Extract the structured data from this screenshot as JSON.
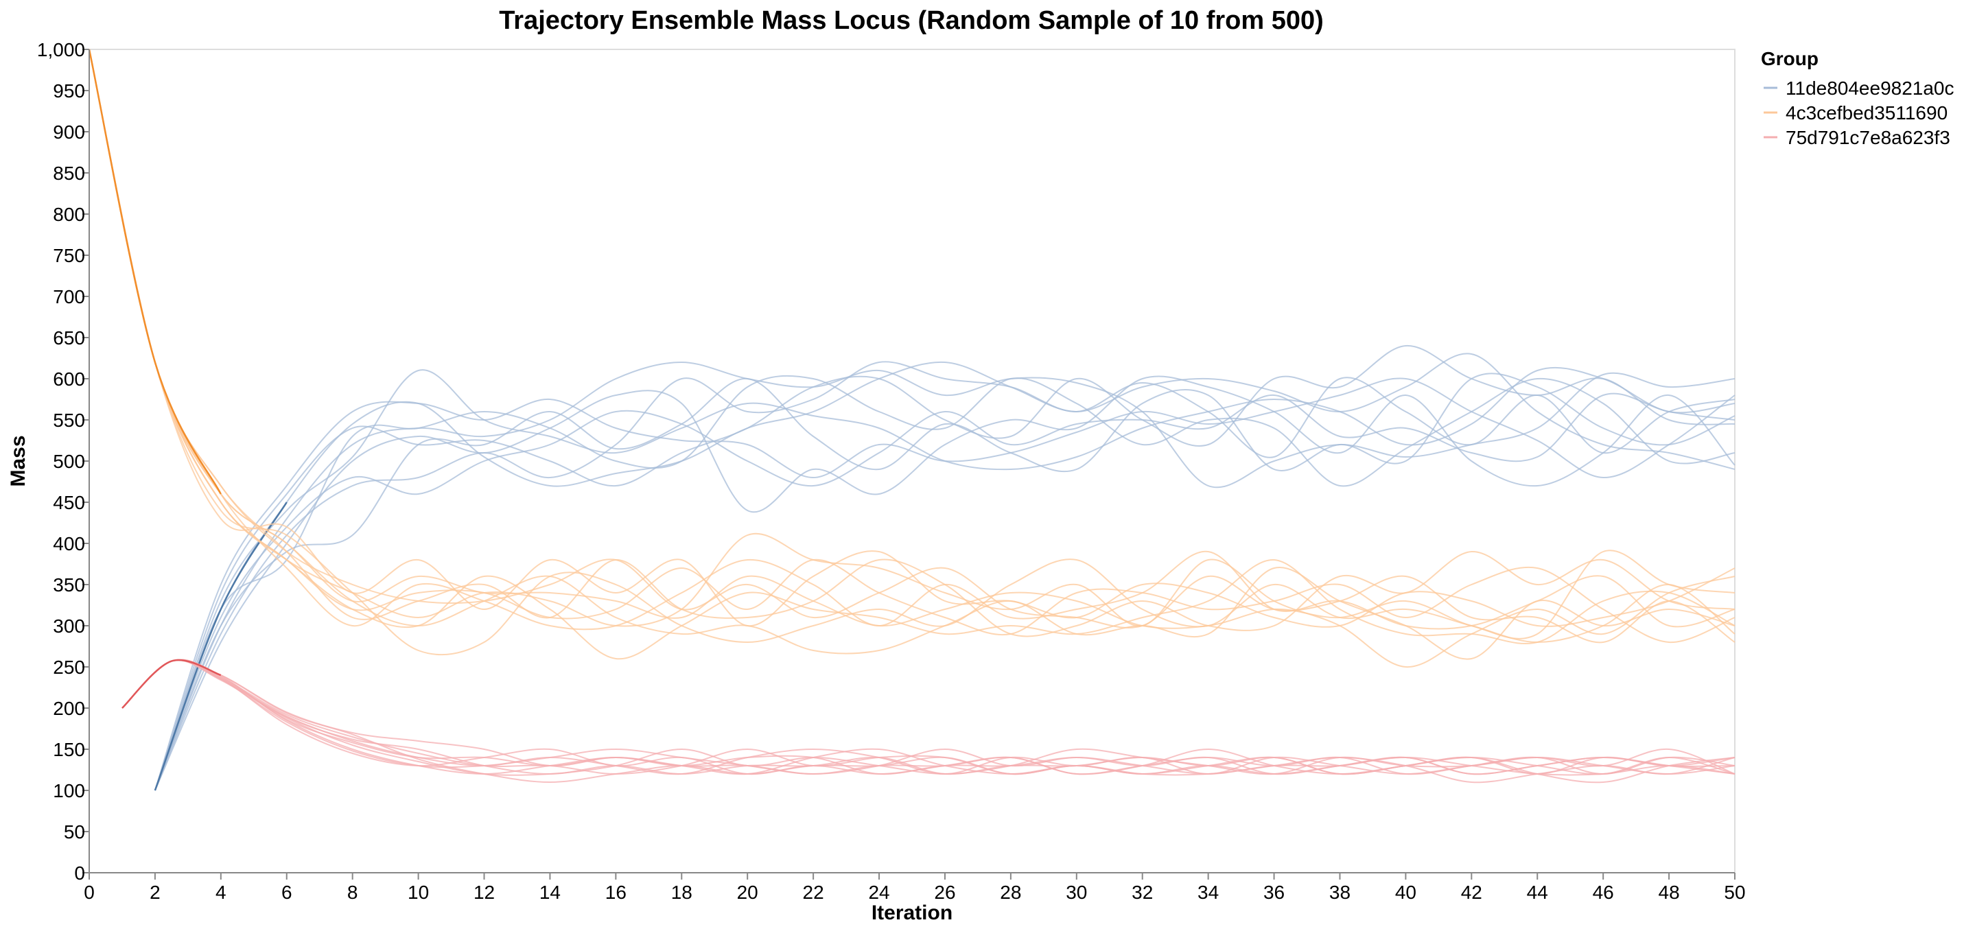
{
  "chart_data": {
    "type": "line",
    "title": "Trajectory Ensemble Mass Locus (Random Sample of 10 from 500)",
    "xlabel": "Iteration",
    "ylabel": "Mass",
    "xlim": [
      0,
      50
    ],
    "ylim": [
      0,
      1000
    ],
    "x_ticks": [
      "0",
      "2",
      "4",
      "6",
      "8",
      "10",
      "12",
      "14",
      "16",
      "18",
      "20",
      "22",
      "24",
      "26",
      "28",
      "30",
      "32",
      "34",
      "36",
      "38",
      "40",
      "42",
      "44",
      "46",
      "48",
      "50"
    ],
    "y_ticks": [
      "0",
      "50",
      "100",
      "150",
      "200",
      "250",
      "300",
      "350",
      "400",
      "450",
      "500",
      "550",
      "600",
      "650",
      "700",
      "750",
      "800",
      "850",
      "900",
      "950",
      "1,000"
    ],
    "grid": false,
    "legend": {
      "title": "Group",
      "placement": "top-right",
      "entries": [
        {
          "label": "11de804ee9821a0c",
          "color": "#a7bcd8"
        },
        {
          "label": "4c3cefbed3511690",
          "color": "#fcc89a"
        },
        {
          "label": "75d791c7e8a623f3",
          "color": "#f4aeb0"
        }
      ]
    },
    "groups": [
      {
        "name": "11de804ee9821a0c",
        "color": "#a7bcd8",
        "start_color": "#4e79a7",
        "start_x": 2,
        "start_y": 100,
        "x": [
          2,
          4,
          6,
          8,
          10,
          12,
          14,
          16,
          18,
          20,
          22,
          24,
          26,
          28,
          30,
          32,
          34,
          36,
          38,
          40,
          42,
          44,
          46,
          48,
          50
        ],
        "series": [
          [
            100,
            320,
            450,
            545,
            570,
            505,
            470,
            485,
            500,
            540,
            560,
            600,
            620,
            590,
            560,
            590,
            600,
            585,
            560,
            590,
            630,
            560,
            520,
            510,
            490
          ],
          [
            100,
            300,
            430,
            520,
            540,
            530,
            550,
            600,
            620,
            600,
            590,
            610,
            580,
            600,
            595,
            560,
            470,
            500,
            520,
            505,
            520,
            540,
            605,
            590,
            600
          ],
          [
            100,
            330,
            440,
            505,
            610,
            550,
            530,
            510,
            540,
            570,
            555,
            540,
            500,
            490,
            505,
            540,
            560,
            575,
            560,
            520,
            545,
            610,
            600,
            560,
            570
          ],
          [
            100,
            310,
            420,
            480,
            460,
            500,
            520,
            560,
            545,
            500,
            470,
            510,
            560,
            520,
            545,
            550,
            540,
            580,
            530,
            540,
            510,
            505,
            580,
            560,
            550
          ],
          [
            100,
            280,
            400,
            500,
            530,
            510,
            540,
            580,
            570,
            440,
            490,
            460,
            520,
            550,
            540,
            600,
            590,
            560,
            510,
            580,
            500,
            470,
            510,
            580,
            495
          ],
          [
            100,
            340,
            460,
            540,
            520,
            525,
            500,
            470,
            510,
            540,
            590,
            600,
            550,
            530,
            600,
            550,
            520,
            600,
            590,
            640,
            600,
            580,
            600,
            550,
            545
          ],
          [
            100,
            300,
            390,
            410,
            520,
            520,
            560,
            515,
            545,
            600,
            530,
            490,
            545,
            510,
            490,
            570,
            580,
            490,
            520,
            500,
            600,
            590,
            540,
            520,
            555
          ],
          [
            100,
            290,
            410,
            470,
            480,
            510,
            480,
            520,
            600,
            560,
            575,
            620,
            600,
            590,
            560,
            595,
            560,
            505,
            600,
            560,
            520,
            580,
            510,
            560,
            575
          ],
          [
            100,
            320,
            380,
            530,
            540,
            560,
            540,
            500,
            500,
            590,
            600,
            560,
            540,
            600,
            570,
            520,
            550,
            540,
            470,
            515,
            560,
            600,
            570,
            500,
            510
          ],
          [
            100,
            350,
            470,
            560,
            570,
            550,
            575,
            540,
            525,
            520,
            480,
            520,
            500,
            510,
            535,
            560,
            545,
            560,
            580,
            600,
            560,
            525,
            480,
            520,
            580
          ]
        ]
      },
      {
        "name": "4c3cefbed3511690",
        "color": "#fcc89a",
        "start_color": "#f28e2b",
        "start_x": 0,
        "start_y": 1000,
        "x": [
          0,
          2,
          4,
          6,
          8,
          10,
          12,
          14,
          16,
          18,
          20,
          22,
          24,
          26,
          28,
          30,
          32,
          34,
          36,
          38,
          40,
          42,
          44,
          46,
          48,
          50
        ],
        "series": [
          [
            1000,
            620,
            460,
            400,
            330,
            300,
            330,
            360,
            310,
            290,
            300,
            270,
            270,
            300,
            330,
            290,
            300,
            290,
            370,
            330,
            300,
            260,
            330,
            300,
            320,
            300
          ],
          [
            1000,
            620,
            450,
            380,
            340,
            310,
            340,
            330,
            300,
            320,
            410,
            380,
            370,
            340,
            320,
            350,
            300,
            380,
            330,
            300,
            250,
            290,
            320,
            290,
            340,
            360
          ],
          [
            1000,
            620,
            470,
            390,
            310,
            330,
            350,
            310,
            380,
            320,
            310,
            330,
            380,
            350,
            290,
            300,
            330,
            300,
            300,
            360,
            340,
            390,
            350,
            380,
            330,
            320
          ],
          [
            1000,
            620,
            440,
            410,
            340,
            270,
            280,
            360,
            350,
            300,
            280,
            300,
            320,
            300,
            350,
            380,
            320,
            300,
            350,
            310,
            320,
            300,
            280,
            300,
            350,
            290
          ],
          [
            1000,
            620,
            460,
            370,
            300,
            350,
            330,
            300,
            300,
            340,
            380,
            350,
            300,
            350,
            310,
            320,
            340,
            390,
            320,
            330,
            300,
            300,
            330,
            360,
            300,
            320
          ],
          [
            1000,
            620,
            450,
            380,
            320,
            300,
            360,
            320,
            260,
            300,
            340,
            320,
            310,
            290,
            300,
            290,
            310,
            330,
            380,
            320,
            290,
            290,
            280,
            330,
            340,
            300
          ],
          [
            1000,
            620,
            430,
            420,
            340,
            380,
            320,
            380,
            340,
            380,
            300,
            360,
            390,
            330,
            330,
            310,
            350,
            340,
            310,
            300,
            340,
            330,
            300,
            310,
            330,
            370
          ],
          [
            1000,
            620,
            470,
            390,
            350,
            330,
            330,
            350,
            380,
            320,
            350,
            310,
            340,
            370,
            320,
            310,
            300,
            360,
            320,
            330,
            360,
            310,
            310,
            280,
            330,
            280
          ],
          [
            1000,
            620,
            450,
            380,
            320,
            340,
            340,
            310,
            320,
            370,
            320,
            380,
            340,
            310,
            290,
            340,
            340,
            320,
            330,
            350,
            310,
            350,
            370,
            320,
            280,
            310
          ],
          [
            1000,
            620,
            460,
            400,
            330,
            360,
            340,
            340,
            330,
            310,
            360,
            330,
            300,
            320,
            340,
            330,
            300,
            300,
            320,
            310,
            330,
            300,
            290,
            390,
            350,
            340
          ]
        ]
      },
      {
        "name": "75d791c7e8a623f3",
        "color": "#f4aeb0",
        "start_color": "#e15759",
        "start_x": 1,
        "start_y": 200,
        "x": [
          1,
          2.5,
          4,
          6,
          8,
          10,
          12,
          14,
          16,
          18,
          20,
          22,
          24,
          26,
          28,
          30,
          32,
          34,
          36,
          38,
          40,
          42,
          44,
          46,
          48,
          50
        ],
        "series": [
          [
            200,
            257,
            240,
            195,
            170,
            160,
            150,
            130,
            140,
            130,
            120,
            140,
            150,
            130,
            120,
            130,
            120,
            120,
            130,
            140,
            130,
            110,
            120,
            130,
            120,
            140
          ],
          [
            200,
            257,
            235,
            190,
            160,
            140,
            130,
            140,
            130,
            120,
            140,
            150,
            140,
            120,
            140,
            130,
            140,
            120,
            140,
            130,
            120,
            130,
            140,
            120,
            140,
            130
          ],
          [
            200,
            257,
            238,
            185,
            150,
            130,
            120,
            130,
            140,
            130,
            130,
            120,
            130,
            150,
            130,
            140,
            130,
            140,
            120,
            130,
            140,
            120,
            130,
            140,
            130,
            120
          ],
          [
            200,
            257,
            236,
            180,
            145,
            130,
            140,
            150,
            130,
            140,
            120,
            130,
            120,
            130,
            140,
            120,
            130,
            150,
            130,
            120,
            130,
            140,
            120,
            110,
            130,
            140
          ],
          [
            200,
            257,
            234,
            188,
            155,
            135,
            120,
            120,
            130,
            150,
            130,
            140,
            130,
            120,
            130,
            150,
            140,
            130,
            120,
            140,
            130,
            130,
            140,
            130,
            120,
            130
          ],
          [
            200,
            257,
            237,
            192,
            165,
            145,
            130,
            130,
            120,
            130,
            150,
            130,
            140,
            140,
            120,
            130,
            120,
            130,
            140,
            120,
            130,
            140,
            130,
            120,
            140,
            120
          ],
          [
            200,
            257,
            239,
            186,
            158,
            140,
            140,
            130,
            140,
            130,
            140,
            140,
            120,
            130,
            130,
            140,
            130,
            120,
            130,
            130,
            140,
            120,
            130,
            140,
            130,
            130
          ],
          [
            200,
            257,
            235,
            183,
            148,
            130,
            130,
            140,
            150,
            140,
            130,
            120,
            130,
            130,
            140,
            120,
            130,
            140,
            130,
            140,
            120,
            130,
            140,
            130,
            150,
            120
          ],
          [
            200,
            257,
            236,
            189,
            162,
            150,
            130,
            120,
            130,
            120,
            130,
            130,
            140,
            120,
            130,
            130,
            140,
            130,
            140,
            120,
            130,
            140,
            120,
            140,
            130,
            140
          ],
          [
            200,
            257,
            240,
            194,
            168,
            138,
            120,
            110,
            120,
            130,
            120,
            130,
            130,
            140,
            120,
            130,
            120,
            130,
            120,
            130,
            140,
            130,
            120,
            120,
            130,
            120
          ]
        ]
      }
    ]
  }
}
